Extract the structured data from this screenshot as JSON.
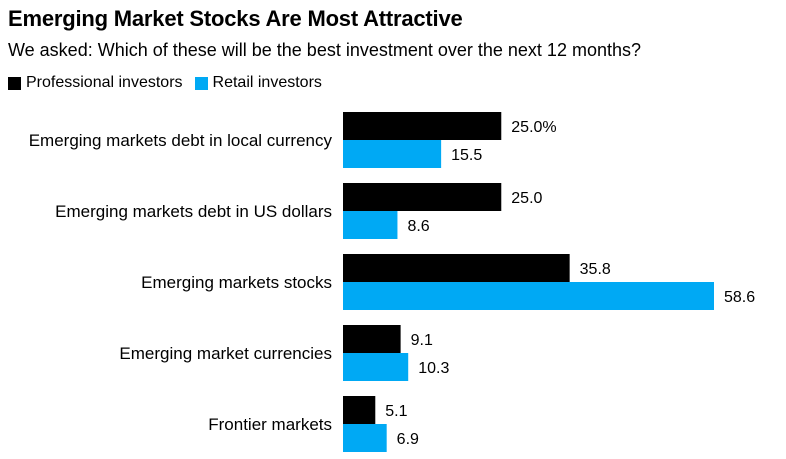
{
  "chart_data": {
    "type": "bar",
    "orientation": "horizontal",
    "title": "Emerging Market Stocks Are Most Attractive",
    "subtitle": "We asked: Which of these will be the best investment over the next 12 months?",
    "categories": [
      "Emerging markets debt in local currency",
      "Emerging markets debt in US dollars",
      "Emerging markets stocks",
      "Emerging market currencies",
      "Frontier markets"
    ],
    "series": [
      {
        "name": "Professional investors",
        "color": "#000000",
        "values": [
          25.0,
          25.0,
          35.8,
          9.1,
          5.1
        ],
        "labels": [
          "25.0%",
          "25.0",
          "35.8",
          "9.1",
          "5.1"
        ]
      },
      {
        "name": "Retail investors",
        "color": "#00a9f4",
        "values": [
          15.5,
          8.6,
          58.6,
          10.3,
          6.9
        ],
        "labels": [
          "15.5",
          "8.6",
          "58.6",
          "10.3",
          "6.9"
        ]
      }
    ],
    "xlim": [
      0,
      58.6
    ],
    "xlabel": "",
    "ylabel": "",
    "grid": false,
    "legend": "top-left"
  }
}
